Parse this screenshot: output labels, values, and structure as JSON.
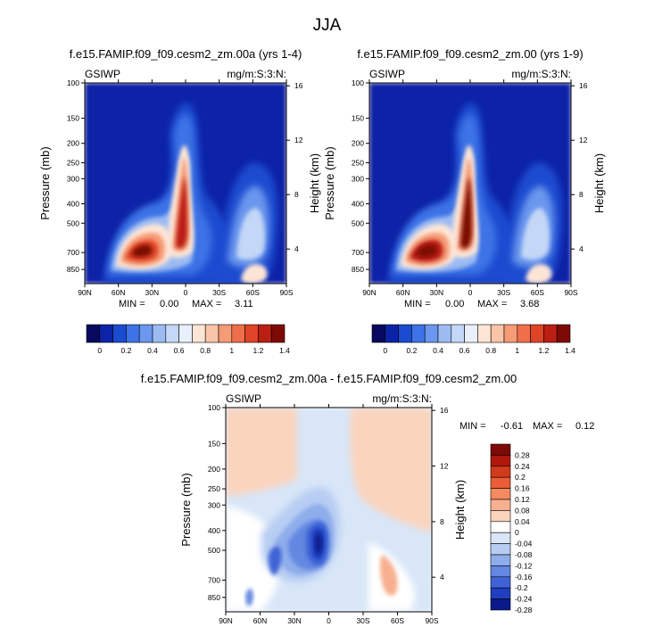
{
  "main_title": "JJA",
  "chart_data": [
    {
      "type": "contour",
      "title": "f.e15.FAMIP.f09_f09.cesm2_zm.00a (yrs 1-4)",
      "left_label": "GSIWP",
      "right_label": "mg/m:S:3:N:",
      "ylabel": "Pressure (mb)",
      "y2label": "Height (km)",
      "x_ticks": [
        "90N",
        "60N",
        "30N",
        "0",
        "30S",
        "60S",
        "90S"
      ],
      "y_ticks": [
        "100",
        "150",
        "200",
        "250",
        "300",
        "400",
        "500",
        "700",
        "850"
      ],
      "y2_ticks": [
        "16",
        "12",
        "8",
        "4"
      ],
      "min_label": "MIN =",
      "min": "0.00",
      "max_label": "MAX =",
      "max": "3.11",
      "colorbar_ticks": [
        "0",
        "0.2",
        "0.4",
        "0.6",
        "0.8",
        "1",
        "1.2",
        "1.4"
      ]
    },
    {
      "type": "contour",
      "title": "f.e15.FAMIP.f09_f09.cesm2_zm.00 (yrs 1-9)",
      "left_label": "GSIWP",
      "right_label": "mg/m:S:3:N:",
      "ylabel": "Pressure (mb)",
      "y2label": "Height (km)",
      "x_ticks": [
        "90N",
        "60N",
        "30N",
        "0",
        "30S",
        "60S",
        "90S"
      ],
      "y_ticks": [
        "100",
        "150",
        "200",
        "250",
        "300",
        "400",
        "500",
        "700",
        "850"
      ],
      "y2_ticks": [
        "16",
        "12",
        "8",
        "4"
      ],
      "min_label": "MIN =",
      "min": "0.00",
      "max_label": "MAX =",
      "max": "3.68",
      "colorbar_ticks": [
        "0",
        "0.2",
        "0.4",
        "0.6",
        "0.8",
        "1",
        "1.2",
        "1.4"
      ]
    },
    {
      "type": "contour",
      "title": "f.e15.FAMIP.f09_f09.cesm2_zm.00a - f.e15.FAMIP.f09_f09.cesm2_zm.00",
      "left_label": "GSIWP",
      "right_label": "mg/m:S:3:N:",
      "ylabel": "Pressure (mb)",
      "y2label": "Height (km)",
      "x_ticks": [
        "90N",
        "60N",
        "30N",
        "0",
        "30S",
        "60S",
        "90S"
      ],
      "y_ticks": [
        "100",
        "150",
        "200",
        "250",
        "300",
        "400",
        "500",
        "700",
        "850"
      ],
      "y2_ticks": [
        "16",
        "12",
        "8",
        "4"
      ],
      "min_label": "MIN =",
      "min": "-0.61",
      "max_label": "MAX =",
      "max": "0.12",
      "colorbar_ticks": [
        "0.28",
        "0.24",
        "0.2",
        "0.16",
        "0.12",
        "0.08",
        "0.04",
        "0",
        "-0.04",
        "-0.08",
        "-0.12",
        "-0.16",
        "-0.2",
        "-0.24",
        "-0.28"
      ]
    }
  ],
  "colors": {
    "seq": [
      "#08085e",
      "#0b23a6",
      "#1a4bd0",
      "#3d73e6",
      "#6b97ee",
      "#9cbbf3",
      "#c4d7f6",
      "#e8f0fb",
      "#fde5d6",
      "#f9c4a8",
      "#f59b76",
      "#ef6f4a",
      "#e04426",
      "#bb1e12",
      "#7d0a06"
    ],
    "diff": [
      "#7d0a06",
      "#b0170d",
      "#d23a1c",
      "#eb5d36",
      "#f58a62",
      "#f7b08f",
      "#fbd4bd",
      "#ffffff",
      "#d8e6f8",
      "#b7cdf2",
      "#8eadeb",
      "#6488e2",
      "#3f63d6",
      "#1f3fc0",
      "#0b1a8a"
    ]
  }
}
